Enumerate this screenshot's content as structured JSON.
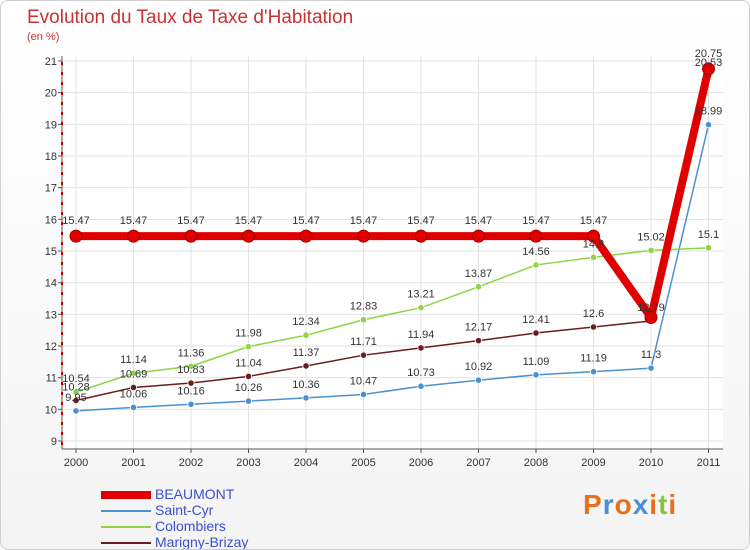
{
  "chart_data": {
    "type": "line",
    "title": "Evolution du Taux de Taxe d'Habitation",
    "subtitle": "(en %)",
    "xlabel": "",
    "ylabel": "",
    "categories": [
      "2000",
      "2001",
      "2002",
      "2003",
      "2004",
      "2005",
      "2006",
      "2007",
      "2008",
      "2009",
      "2010",
      "2011"
    ],
    "ylim": [
      9,
      21
    ],
    "yticks": [
      9,
      10,
      11,
      12,
      13,
      14,
      15,
      16,
      17,
      18,
      19,
      20,
      21
    ],
    "grid": true,
    "legend_position": "bottom-left",
    "series": [
      {
        "name": "BEAUMONT",
        "color": "#e00000",
        "values": [
          15.47,
          15.47,
          15.47,
          15.47,
          15.47,
          15.47,
          15.47,
          15.47,
          15.47,
          15.47,
          12.9,
          20.75
        ],
        "labels": [
          "15.47",
          "15.47",
          "15.47",
          "15.47",
          "15.47",
          "15.47",
          "15.47",
          "15.47",
          "15.47",
          "15.47",
          "",
          "20.75"
        ]
      },
      {
        "name": "Saint-Cyr",
        "color": "#4b90d0",
        "values": [
          9.95,
          10.06,
          10.16,
          10.26,
          10.36,
          10.47,
          10.73,
          10.92,
          11.09,
          11.19,
          11.3,
          18.99
        ],
        "labels": [
          "9.95",
          "10.06",
          "10.16",
          "10.26",
          "10.36",
          "10.47",
          "10.73",
          "10.92",
          "11.09",
          "11.19",
          "11.3",
          "18.99"
        ]
      },
      {
        "name": "Colombiers",
        "color": "#8ed448",
        "values": [
          10.54,
          11.14,
          11.36,
          11.98,
          12.34,
          12.83,
          13.21,
          13.87,
          14.56,
          14.8,
          15.02,
          15.1
        ],
        "labels": [
          "10.54",
          "11.14",
          "11.36",
          "11.98",
          "12.34",
          "12.83",
          "13.21",
          "13.87",
          "14.56",
          "14.8",
          "15.02",
          "15.1"
        ]
      },
      {
        "name": "Marigny-Brizay",
        "color": "#6b1c1c",
        "values": [
          10.28,
          10.69,
          10.83,
          11.04,
          11.37,
          11.71,
          11.94,
          12.17,
          12.41,
          12.6,
          12.79,
          20.53
        ],
        "labels": [
          "10.28",
          "10.69",
          "10.83",
          "11.04",
          "11.37",
          "11.71",
          "11.94",
          "12.17",
          "12.41",
          "12.6",
          "12.79",
          "20.53"
        ]
      }
    ]
  },
  "logo": {
    "text": "Proxiti",
    "colors": [
      "#e8701a",
      "#4a8fd6",
      "#e8701a",
      "#4a8fd6",
      "#e8701a",
      "#8bc43f",
      "#e8701a"
    ]
  }
}
